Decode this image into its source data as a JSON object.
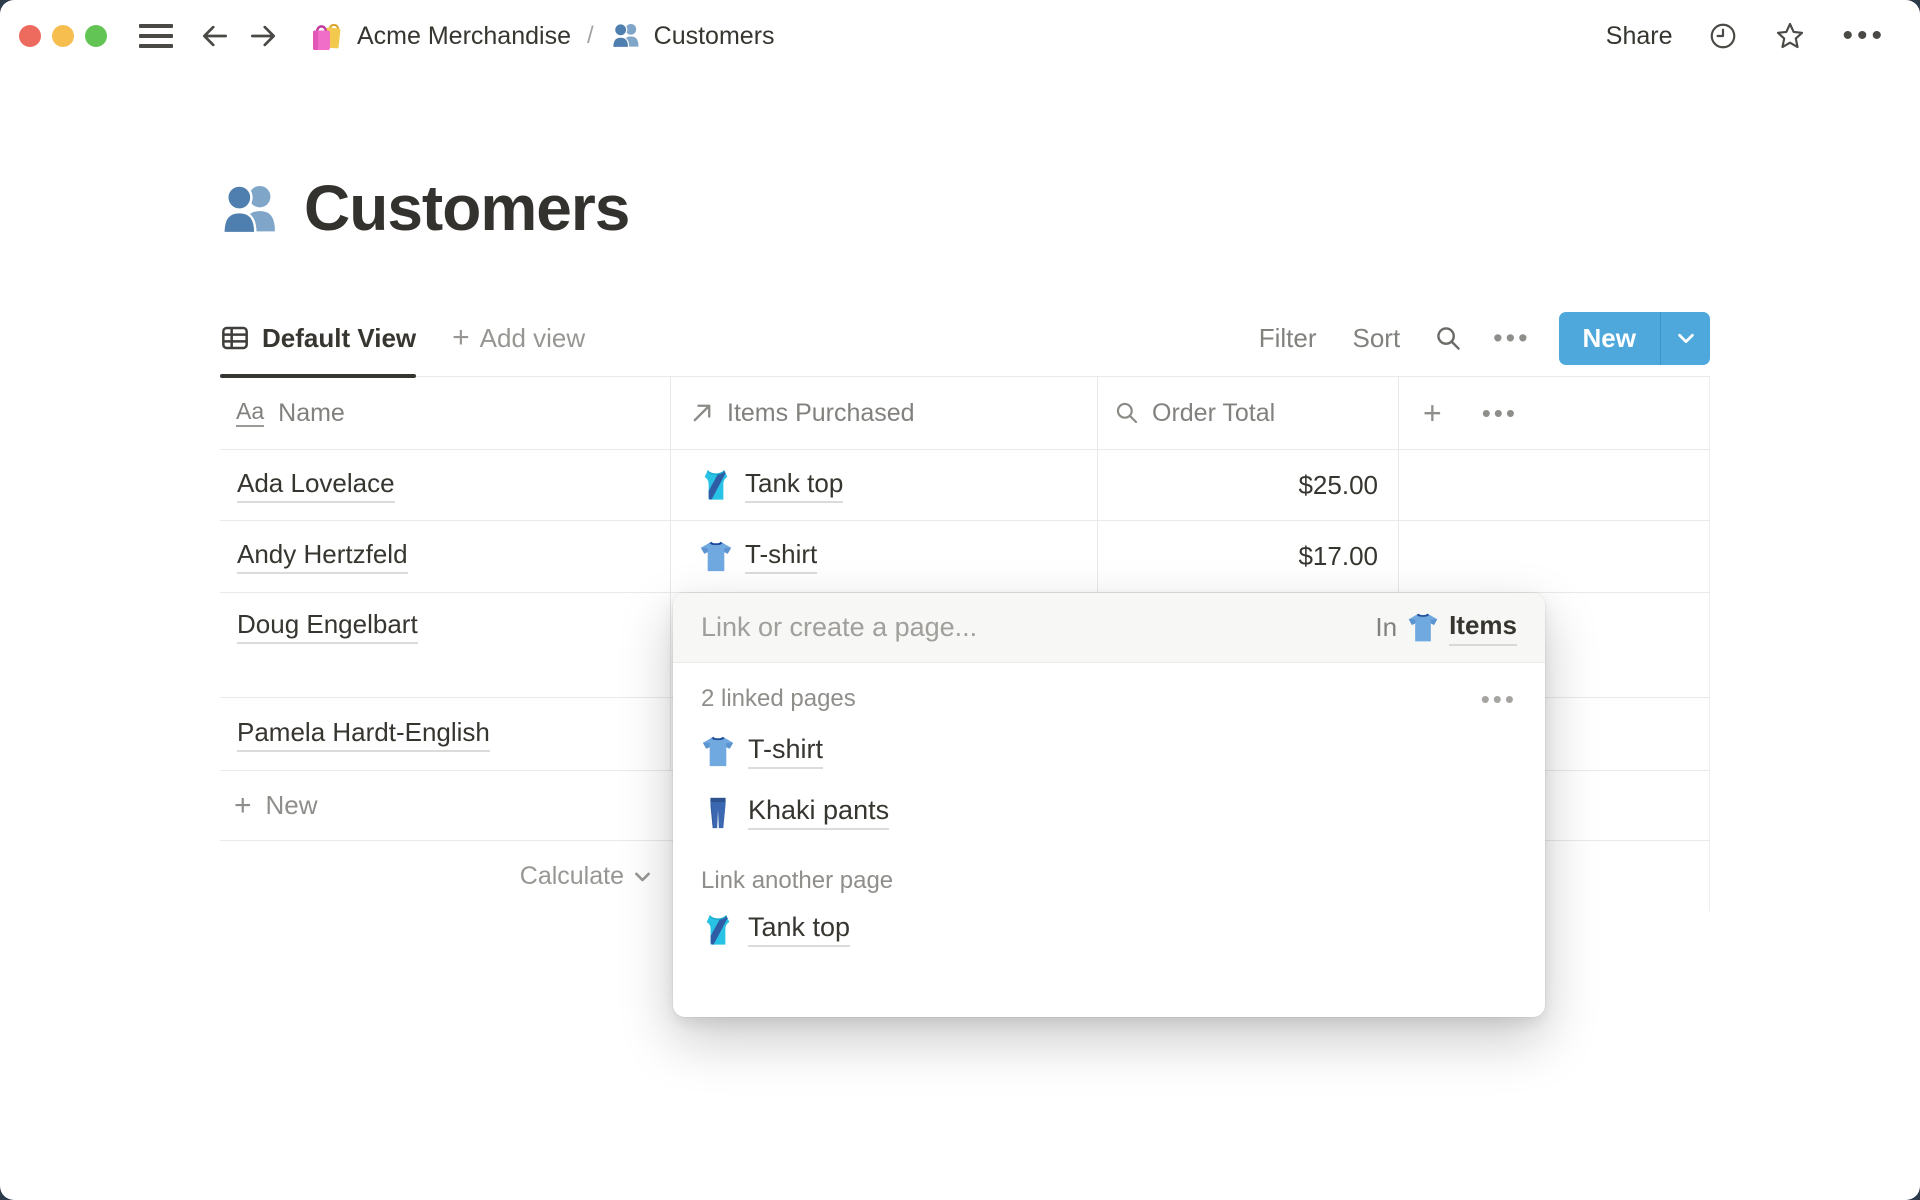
{
  "topbar": {
    "breadcrumb": {
      "workspace": "Acme Merchandise",
      "separator": "/",
      "page": "Customers"
    },
    "share_label": "Share",
    "dots": "•••"
  },
  "page": {
    "title": "Customers",
    "icon": "people"
  },
  "toolbar": {
    "active_view": "Default View",
    "add_view_plus": "+",
    "add_view_label": "Add view",
    "filter_label": "Filter",
    "sort_label": "Sort",
    "dots": "•••",
    "new_label": "New",
    "new_button_color": "#4fa8db"
  },
  "table": {
    "columns": [
      {
        "label": "Name",
        "icon": "text-property"
      },
      {
        "label": "Items Purchased",
        "icon": "relation-property"
      },
      {
        "label": "Order Total",
        "icon": "rollup-property"
      }
    ],
    "header_plus": "+",
    "header_dots": "•••",
    "rows": [
      {
        "name": "Ada Lovelace",
        "item": {
          "icon": "tank-top",
          "label": "Tank top"
        },
        "total": "$25.00",
        "tall": false
      },
      {
        "name": "Andy Hertzfeld",
        "item": {
          "icon": "t-shirt",
          "label": "T-shirt"
        },
        "total": "$17.00",
        "tall": false
      },
      {
        "name": "Doug Engelbart",
        "item": null,
        "total": "",
        "tall": true
      },
      {
        "name": "Pamela Hardt-English",
        "item": null,
        "total": "",
        "tall": false
      }
    ],
    "new_row_plus": "+",
    "new_row_label": "New",
    "calculate_label": "Calculate"
  },
  "popup": {
    "placeholder": "Link or create a page...",
    "in_label": "In",
    "in_target": {
      "icon": "t-shirt",
      "label": "Items"
    },
    "linked_section_label": "2 linked pages",
    "section_dots": "•••",
    "linked_pages": [
      {
        "icon": "t-shirt",
        "label": "T-shirt"
      },
      {
        "icon": "jeans",
        "label": "Khaki pants"
      }
    ],
    "link_another_label": "Link another page",
    "suggestions": [
      {
        "icon": "tank-top",
        "label": "Tank top"
      }
    ]
  },
  "colors": {
    "accent_blue": "#4fa8db",
    "text_dark": "#37352f",
    "text_gray": "#82817e",
    "divider": "#e9e9e7",
    "traffic_red": "#ec6a5e",
    "traffic_yellow": "#f5be4f",
    "traffic_green": "#61c454",
    "backdrop": "#2c3a49",
    "popup_header_bg": "#f7f7f5"
  }
}
